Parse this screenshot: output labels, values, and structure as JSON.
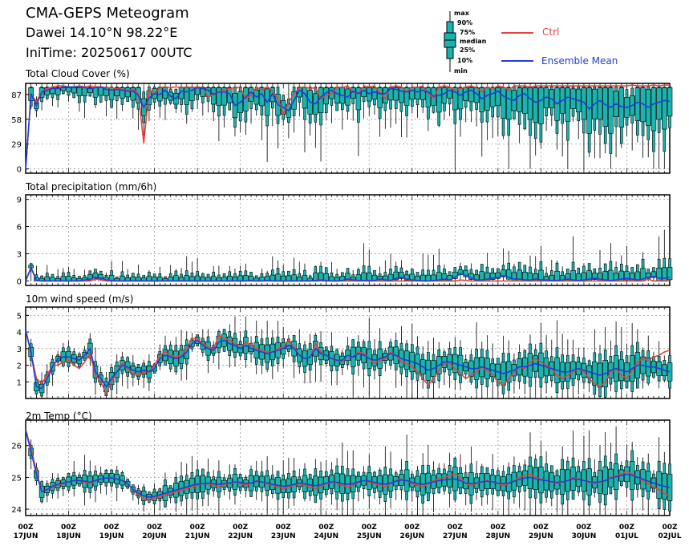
{
  "header": {
    "title": "CMA-GEPS Meteogram",
    "location": "Dawei 14.10°N 98.22°E",
    "init_time": "IniTime: 20250617 00UTC"
  },
  "legend": {
    "boxplot_labels": [
      "max",
      "90%",
      "75%",
      "median",
      "25%",
      "10%",
      "min"
    ],
    "ctrl_label": "Ctrl",
    "mean_label": "Ensemble Mean",
    "ctrl_color": "#e8413c",
    "mean_color": "#1f3fd8",
    "box_color": "#1ab3ad"
  },
  "x_axis": {
    "tick_top": [
      "00Z",
      "00Z",
      "00Z",
      "00Z",
      "00Z",
      "00Z",
      "00Z",
      "00Z",
      "00Z",
      "00Z",
      "00Z",
      "00Z",
      "00Z",
      "00Z",
      "00Z",
      "00Z"
    ],
    "tick_bottom": [
      "17JUN",
      "18JUN",
      "19JUN",
      "20JUN",
      "21JUN",
      "22JUN",
      "23JUN",
      "24JUN",
      "25JUN",
      "26JUN",
      "27JUN",
      "28JUN",
      "29JUN",
      "30JUN",
      "01JUL",
      "02JUL"
    ]
  },
  "chart_data": [
    {
      "type": "boxplot-line",
      "title": "Total Cloud Cover (%)",
      "ylim": [
        -5,
        100
      ],
      "yticks": [
        0,
        29,
        58,
        87
      ],
      "grid": true,
      "x_unit": "hours since 17JUN 00Z, 6-hourly",
      "ctrl": [
        0,
        87,
        79,
        90,
        94,
        96,
        97,
        97,
        96,
        96,
        97,
        96,
        97,
        96,
        96,
        95,
        95,
        94,
        93,
        92,
        93,
        88,
        30,
        92,
        88,
        95,
        96,
        95,
        96,
        95,
        96,
        95,
        96,
        95,
        84,
        88,
        90,
        92,
        94,
        95,
        95,
        82,
        86,
        96,
        92,
        96,
        91,
        82,
        64,
        78,
        88,
        95,
        96,
        94,
        95,
        82,
        86,
        88,
        96,
        95,
        97,
        90,
        88,
        97,
        96,
        97,
        89,
        82,
        96,
        97,
        96,
        90,
        96,
        95,
        97,
        88,
        83,
        96,
        97,
        96,
        92,
        94,
        96,
        97,
        95,
        90,
        96,
        94,
        97,
        96,
        92,
        97,
        97,
        97,
        96,
        97,
        97,
        97,
        97,
        97,
        97,
        97,
        97,
        97,
        97,
        97,
        97,
        97,
        97,
        97,
        97,
        97,
        97,
        98,
        97,
        97,
        97,
        98,
        97,
        98,
        98
      ],
      "mean": [
        0,
        88,
        74,
        90,
        92,
        94,
        94,
        96,
        96,
        96,
        96,
        95,
        94,
        95,
        96,
        93,
        92,
        93,
        92,
        91,
        91,
        86,
        72,
        83,
        88,
        87,
        92,
        85,
        82,
        91,
        90,
        92,
        95,
        94,
        92,
        87,
        90,
        90,
        88,
        74,
        78,
        84,
        90,
        84,
        88,
        78,
        88,
        75,
        72,
        68,
        80,
        92,
        88,
        78,
        76,
        84,
        89,
        92,
        88,
        86,
        84,
        91,
        88,
        92,
        88,
        90,
        88,
        88,
        94,
        93,
        91,
        90,
        92,
        90,
        92,
        90,
        85,
        86,
        88,
        92,
        90,
        86,
        90,
        92,
        88,
        82,
        86,
        88,
        91,
        85,
        82,
        80,
        86,
        88,
        82,
        78,
        80,
        84,
        82,
        76,
        80,
        84,
        82,
        80,
        78,
        70,
        76,
        80,
        75,
        72,
        76,
        73,
        72,
        74,
        78,
        76,
        72,
        76,
        78,
        80,
        79
      ]
    },
    {
      "type": "boxplot-line",
      "title": "Total precipitation (mm/6h)",
      "ylim": [
        -0.5,
        9.5
      ],
      "yticks": [
        0,
        3,
        6,
        9
      ],
      "grid": true,
      "x_unit": "hours since 17JUN 00Z, 6-hourly",
      "ctrl": [
        0,
        1.4,
        0.05,
        0,
        0,
        0,
        0,
        0,
        0,
        0,
        0,
        0,
        0,
        0.2,
        0.1,
        0,
        0,
        0,
        0,
        0,
        0,
        0,
        0,
        0,
        0,
        0,
        0,
        0,
        0,
        0,
        0,
        0,
        0,
        0,
        0,
        0,
        0,
        0,
        0,
        0,
        0,
        0,
        0,
        0,
        0,
        0,
        0,
        0,
        0,
        0,
        0,
        0,
        0,
        0,
        0,
        0,
        0,
        0,
        0,
        0,
        0,
        0,
        0,
        0,
        0,
        0,
        0,
        0,
        0,
        0,
        0,
        0,
        0,
        0,
        0,
        0,
        0,
        0,
        0,
        0,
        0,
        0.1,
        0.05,
        0,
        0,
        0,
        0,
        0,
        0,
        0,
        0,
        0,
        0,
        0,
        0,
        0,
        0,
        0,
        0,
        0,
        0,
        0,
        0,
        0,
        0,
        0,
        0,
        0,
        0,
        0,
        0,
        0,
        0,
        0,
        0,
        0,
        0.2,
        0,
        0,
        0,
        0
      ],
      "mean": [
        0,
        1.5,
        0.05,
        0,
        0,
        0,
        0,
        0,
        0,
        0,
        0,
        0.1,
        0.2,
        0.4,
        0.3,
        0.1,
        0.05,
        0,
        0,
        0,
        0,
        0,
        0,
        0,
        0,
        0,
        0,
        0,
        0,
        0,
        0,
        0,
        0,
        0,
        0,
        0,
        0,
        0,
        0,
        0,
        0,
        0,
        0.05,
        0,
        0,
        0.05,
        0,
        0,
        0,
        0,
        0,
        0,
        0,
        0,
        0.05,
        0.1,
        0.05,
        0,
        0,
        0.05,
        0.2,
        0.1,
        0.05,
        0.05,
        0.05,
        0.05,
        0.2,
        0.1,
        0.05,
        0.3,
        0.4,
        0.2,
        0.1,
        0.05,
        0,
        0,
        0.05,
        0.1,
        0.2,
        0.1,
        0.4,
        0.8,
        0.6,
        0.3,
        0.1,
        0.1,
        0.2,
        0.3,
        0.4,
        0.6,
        0.4,
        0.2,
        0.2,
        0.1,
        0.1,
        0.2,
        0.1,
        0.1,
        0.05,
        0.05,
        0.1,
        0.2,
        0.1,
        0.05,
        0.1,
        0.2,
        0.3,
        0.2,
        0.1,
        0.05,
        0.1,
        0.2,
        0.3,
        0.2,
        0.1,
        0.2,
        0.4,
        0.5,
        0.3,
        0.3,
        0.4
      ]
    },
    {
      "type": "boxplot-line",
      "title": "10m wind speed (m/s)",
      "ylim": [
        0,
        5.5
      ],
      "yticks": [
        1,
        2,
        3,
        4,
        5
      ],
      "grid": true,
      "x_unit": "hours since 17JUN 00Z, 6-hourly",
      "ctrl": [
        4.1,
        2.7,
        1.2,
        0.9,
        1.4,
        2.0,
        2.0,
        2.2,
        2.3,
        2.0,
        1.8,
        2.2,
        2.7,
        1.4,
        1.0,
        0.3,
        1.0,
        1.6,
        2.1,
        1.8,
        1.5,
        1.4,
        1.6,
        1.6,
        2.0,
        2.6,
        2.8,
        2.6,
        2.5,
        2.6,
        3.0,
        3.6,
        3.6,
        3.3,
        3.1,
        3.0,
        3.8,
        3.6,
        3.5,
        3.3,
        3.0,
        3.4,
        3.2,
        3.0,
        2.9,
        2.8,
        2.8,
        3.0,
        3.1,
        3.5,
        3.1,
        2.6,
        2.4,
        2.5,
        3.3,
        2.8,
        2.6,
        2.4,
        2.3,
        2.2,
        2.6,
        2.5,
        2.8,
        2.7,
        2.4,
        2.1,
        2.3,
        2.4,
        2.8,
        2.6,
        2.2,
        2.1,
        1.9,
        1.6,
        1.2,
        0.8,
        1.2,
        1.7,
        2.1,
        2.1,
        1.8,
        1.5,
        1.2,
        1.4,
        1.6,
        1.9,
        1.7,
        1.4,
        1.0,
        0.8,
        1.2,
        1.6,
        1.9,
        1.8,
        2.2,
        2.4,
        2.2,
        2.0,
        1.8,
        1.4,
        1.2,
        1.4,
        1.6,
        1.8,
        1.6,
        1.2,
        0.9,
        0.7,
        1.0,
        1.6,
        1.8,
        1.4,
        1.2,
        1.7,
        2.2,
        2.4,
        2.3,
        2.5,
        2.6,
        2.8,
        2.9
      ],
      "mean": [
        4.1,
        2.8,
        0.7,
        0.6,
        1.2,
        1.9,
        2.4,
        2.5,
        2.5,
        2.4,
        2.3,
        2.6,
        3.0,
        1.6,
        1.2,
        0.7,
        1.2,
        1.6,
        2.0,
        1.9,
        1.7,
        1.6,
        1.7,
        1.6,
        1.8,
        2.4,
        2.6,
        2.5,
        2.4,
        2.5,
        2.8,
        3.3,
        3.5,
        3.2,
        3.0,
        2.9,
        3.4,
        3.5,
        3.3,
        3.2,
        3.0,
        3.2,
        3.0,
        2.9,
        2.8,
        2.7,
        2.8,
        2.9,
        3.0,
        3.2,
        3.0,
        2.6,
        2.4,
        2.5,
        3.0,
        2.7,
        2.6,
        2.4,
        2.3,
        2.3,
        2.6,
        2.5,
        2.7,
        2.6,
        2.4,
        2.3,
        2.4,
        2.5,
        2.7,
        2.6,
        2.4,
        2.3,
        2.2,
        2.1,
        1.9,
        1.7,
        1.8,
        2.0,
        2.2,
        2.2,
        2.1,
        2.0,
        1.9,
        1.8,
        1.8,
        1.9,
        1.8,
        1.7,
        1.6,
        1.5,
        1.6,
        1.7,
        1.9,
        1.9,
        2.0,
        2.1,
        2.0,
        1.9,
        1.8,
        1.7,
        1.6,
        1.6,
        1.7,
        1.8,
        1.7,
        1.6,
        1.5,
        1.4,
        1.5,
        1.7,
        1.8,
        1.7,
        1.6,
        1.8,
        2.0,
        2.0,
        1.9,
        1.9,
        1.8,
        1.7,
        1.6
      ]
    },
    {
      "type": "boxplot-line",
      "title": "2m Temp (°C)",
      "ylim": [
        23.8,
        26.8
      ],
      "yticks": [
        24,
        25,
        26
      ],
      "grid": true,
      "x_unit": "hours since 17JUN 00Z, 6-hourly",
      "ctrl": [
        26.5,
        25.9,
        25.2,
        24.55,
        24.6,
        24.7,
        24.75,
        24.8,
        24.85,
        24.9,
        24.88,
        24.85,
        24.8,
        24.9,
        24.95,
        24.98,
        25.0,
        24.95,
        24.9,
        24.8,
        24.6,
        24.45,
        24.35,
        24.3,
        24.35,
        24.4,
        24.45,
        24.5,
        24.55,
        24.6,
        24.65,
        24.7,
        24.75,
        24.8,
        24.8,
        24.75,
        24.7,
        24.78,
        24.8,
        24.85,
        24.8,
        24.75,
        24.8,
        24.9,
        24.85,
        24.8,
        24.75,
        24.7,
        24.65,
        24.7,
        24.75,
        24.8,
        24.75,
        24.7,
        24.65,
        24.7,
        24.8,
        24.85,
        24.8,
        24.75,
        24.7,
        24.75,
        24.85,
        24.9,
        24.85,
        24.8,
        24.75,
        24.7,
        24.8,
        24.9,
        24.95,
        24.9,
        24.8,
        24.75,
        24.7,
        24.8,
        24.9,
        24.95,
        25.0,
        25.05,
        25.1,
        25.0,
        24.8,
        24.75,
        24.8,
        24.85,
        24.9,
        24.85,
        24.8,
        24.75,
        24.8,
        24.9,
        25.0,
        25.05,
        25.1,
        25.0,
        24.95,
        24.9,
        24.85,
        24.8,
        24.85,
        24.9,
        25.0,
        24.95,
        24.9,
        24.85,
        24.8,
        24.85,
        24.9,
        25.0,
        25.05,
        25.1,
        25.2,
        25.1,
        25.0,
        24.9,
        24.8,
        24.7,
        24.6,
        24.5,
        24.4
      ],
      "mean": [
        26.5,
        25.8,
        25.1,
        24.55,
        24.62,
        24.72,
        24.78,
        24.82,
        24.86,
        24.9,
        24.9,
        24.88,
        24.85,
        24.9,
        24.95,
        24.98,
        24.98,
        24.95,
        24.9,
        24.8,
        24.62,
        24.5,
        24.42,
        24.38,
        24.4,
        24.45,
        24.5,
        24.55,
        24.6,
        24.65,
        24.7,
        24.75,
        24.78,
        24.8,
        24.82,
        24.8,
        24.78,
        24.8,
        24.82,
        24.86,
        24.84,
        24.8,
        24.82,
        24.88,
        24.86,
        24.82,
        24.78,
        24.75,
        24.72,
        24.74,
        24.78,
        24.82,
        24.8,
        24.76,
        24.74,
        24.76,
        24.82,
        24.86,
        24.84,
        24.8,
        24.78,
        24.8,
        24.86,
        24.9,
        24.88,
        24.84,
        24.8,
        24.78,
        24.82,
        24.88,
        24.92,
        24.9,
        24.84,
        24.8,
        24.78,
        24.82,
        24.86,
        24.9,
        24.92,
        24.94,
        24.95,
        24.9,
        24.82,
        24.8,
        24.82,
        24.86,
        24.88,
        24.86,
        24.82,
        24.8,
        24.82,
        24.88,
        24.94,
        24.98,
        25.0,
        24.96,
        24.92,
        24.9,
        24.86,
        24.84,
        24.86,
        24.9,
        24.96,
        24.94,
        24.9,
        24.86,
        24.84,
        24.86,
        24.9,
        24.98,
        25.02,
        25.06,
        25.1,
        25.06,
        25.0,
        24.94,
        24.88,
        24.82,
        24.76,
        24.72,
        24.68
      ]
    }
  ]
}
